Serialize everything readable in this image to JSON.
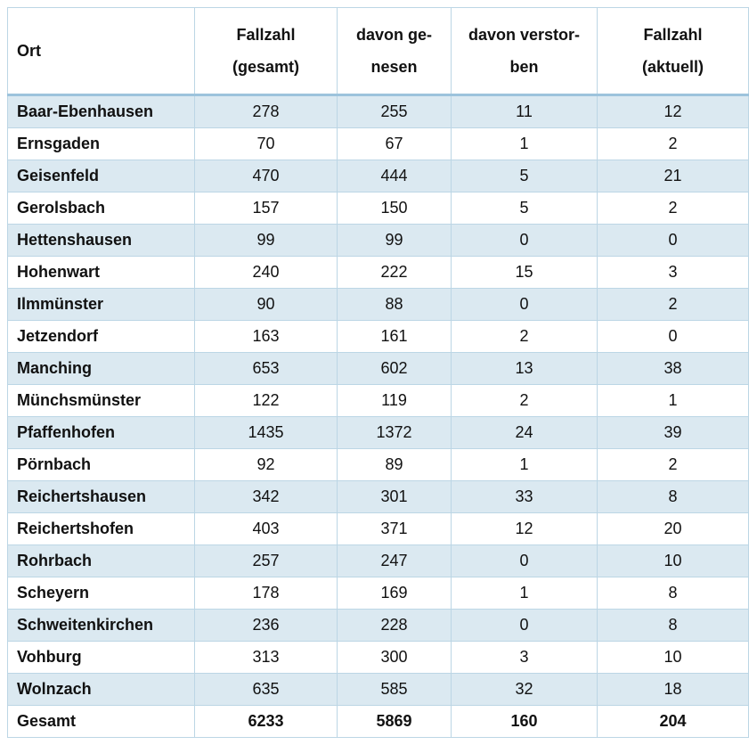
{
  "table": {
    "columns": [
      [
        "Ort"
      ],
      [
        "Fallzahl",
        "(gesamt)"
      ],
      [
        "davon ge-",
        "nesen"
      ],
      [
        "davon verstor-",
        "ben"
      ],
      [
        "Fallzahl",
        "(aktuell)"
      ]
    ],
    "rows": [
      [
        "Baar-Ebenhausen",
        278,
        255,
        11,
        12
      ],
      [
        "Ernsgaden",
        70,
        67,
        1,
        2
      ],
      [
        "Geisenfeld",
        470,
        444,
        5,
        21
      ],
      [
        "Gerolsbach",
        157,
        150,
        5,
        2
      ],
      [
        "Hettenshausen",
        99,
        99,
        0,
        0
      ],
      [
        "Hohenwart",
        240,
        222,
        15,
        3
      ],
      [
        "Ilmmünster",
        90,
        88,
        0,
        2
      ],
      [
        "Jetzendorf",
        163,
        161,
        2,
        0
      ],
      [
        "Manching",
        653,
        602,
        13,
        38
      ],
      [
        "Münchsmünster",
        122,
        119,
        2,
        1
      ],
      [
        "Pfaffenhofen",
        1435,
        1372,
        24,
        39
      ],
      [
        "Pörnbach",
        92,
        89,
        1,
        2
      ],
      [
        "Reichertshausen",
        342,
        301,
        33,
        8
      ],
      [
        "Reichertshofen",
        403,
        371,
        12,
        20
      ],
      [
        "Rohrbach",
        257,
        247,
        0,
        10
      ],
      [
        "Scheyern",
        178,
        169,
        1,
        8
      ],
      [
        "Schweitenkirchen",
        236,
        228,
        0,
        8
      ],
      [
        "Vohburg",
        313,
        300,
        3,
        10
      ],
      [
        "Wolnzach",
        635,
        585,
        32,
        18
      ]
    ],
    "total": [
      "Gesamt",
      6233,
      5869,
      160,
      204
    ]
  }
}
